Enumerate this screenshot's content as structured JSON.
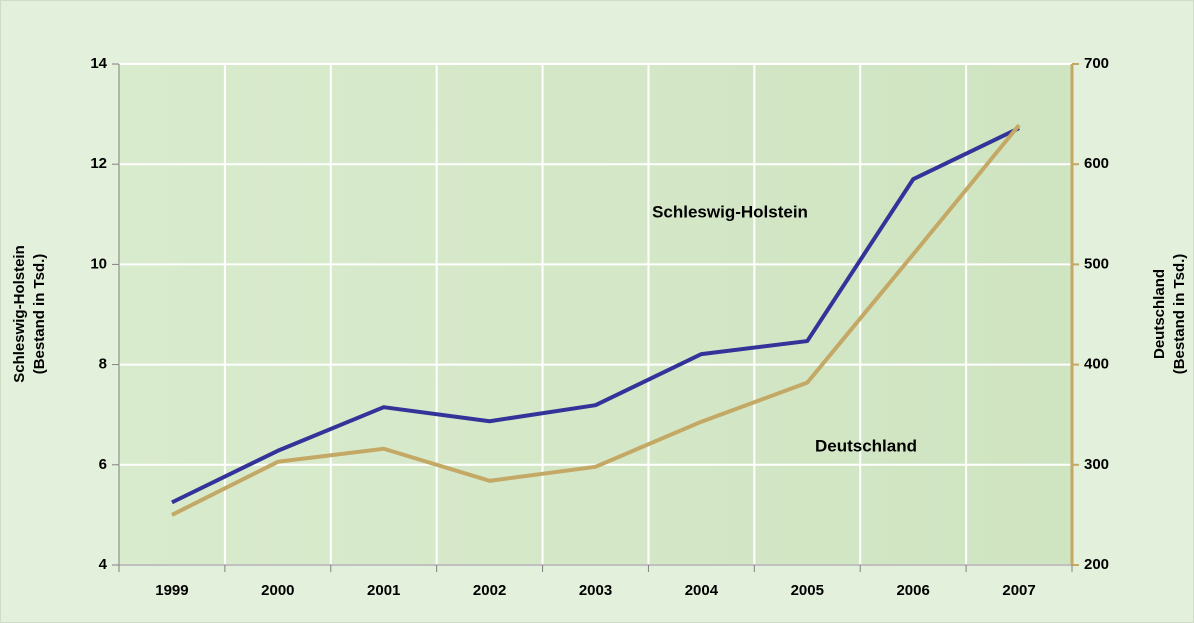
{
  "chart_data": {
    "type": "line",
    "categories": [
      "1999",
      "2000",
      "2001",
      "2002",
      "2003",
      "2004",
      "2005",
      "2006",
      "2007"
    ],
    "series": [
      {
        "name": "Schleswig-Holstein",
        "color": "#333399",
        "axis": "y",
        "values": [
          5.25,
          6.28,
          7.15,
          6.87,
          7.19,
          8.21,
          8.47,
          11.7,
          12.72
        ]
      },
      {
        "name": "Deutschland",
        "color": "#c4a865",
        "axis": "y2",
        "values": [
          250,
          303,
          316,
          284,
          298,
          343,
          382,
          510,
          639
        ]
      }
    ],
    "ylabel": [
      "Schleswig-Holstein",
      "(Bestand in Tsd.)"
    ],
    "y2label": [
      "Deutschland",
      "(Bestand in Tsd.)"
    ],
    "ylim": [
      4,
      14
    ],
    "yticks": [
      4,
      6,
      8,
      10,
      12,
      14
    ],
    "y2lim": [
      200,
      700
    ],
    "y2ticks": [
      200,
      300,
      400,
      500,
      600,
      700
    ],
    "grid": true
  }
}
